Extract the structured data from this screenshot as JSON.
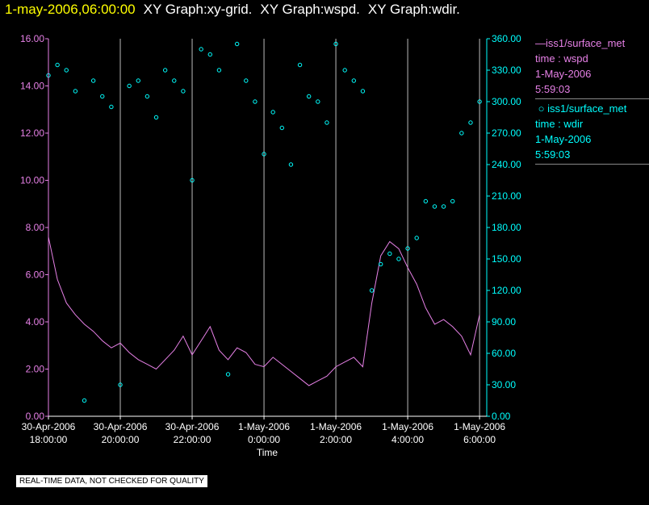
{
  "title": {
    "time": "1-may-2006,06:00:00",
    "parts": [
      "XY Graph:xy-grid.",
      "XY Graph:wspd.",
      "XY Graph:wdir."
    ]
  },
  "legend": {
    "wspd": {
      "name": "iss1/surface_met",
      "var": "time : wspd",
      "date": "1-May-2006",
      "clock": "5:59:03",
      "color": "#e680e6",
      "marker": "line"
    },
    "wdir": {
      "name": "iss1/surface_met",
      "var": "time : wdir",
      "date": "1-May-2006",
      "clock": "5:59:03",
      "color": "#00ffff",
      "marker": "circle"
    }
  },
  "footer_note": "REAL-TIME DATA, NOT CHECKED FOR QUALITY",
  "chart_data": {
    "type": "line",
    "xlabel": "Time",
    "x_range_hours": [
      0,
      12.2
    ],
    "x_ticks": [
      {
        "hour": 0,
        "label1": "30-Apr-2006",
        "label2": "18:00:00"
      },
      {
        "hour": 2,
        "label1": "30-Apr-2006",
        "label2": "20:00:00"
      },
      {
        "hour": 4,
        "label1": "30-Apr-2006",
        "label2": "22:00:00"
      },
      {
        "hour": 6,
        "label1": "1-May-2006",
        "label2": "0:00:00"
      },
      {
        "hour": 8,
        "label1": "1-May-2006",
        "label2": "2:00:00"
      },
      {
        "hour": 10,
        "label1": "1-May-2006",
        "label2": "4:00:00"
      },
      {
        "hour": 12,
        "label1": "1-May-2006",
        "label2": "6:00:00"
      }
    ],
    "left_axis": {
      "ylim": [
        0,
        16
      ],
      "ticks": [
        "0.00",
        "2.00",
        "4.00",
        "6.00",
        "8.00",
        "10.00",
        "12.00",
        "14.00",
        "16.00"
      ],
      "color": "#e680e6"
    },
    "right_axis": {
      "ylim": [
        0,
        360
      ],
      "ticks": [
        "0.00",
        "30.00",
        "60.00",
        "90.00",
        "120.00",
        "150.00",
        "180.00",
        "210.00",
        "240.00",
        "270.00",
        "300.00",
        "330.00",
        "360.00"
      ],
      "color": "#00ffff"
    },
    "series": [
      {
        "name": "wspd",
        "axis": "left",
        "style": "line",
        "color": "#e680e6",
        "x": [
          0.0,
          0.25,
          0.5,
          0.75,
          1.0,
          1.25,
          1.5,
          1.75,
          2.0,
          2.25,
          2.5,
          2.75,
          3.0,
          3.25,
          3.5,
          3.75,
          4.0,
          4.25,
          4.5,
          4.75,
          5.0,
          5.25,
          5.5,
          5.75,
          6.0,
          6.25,
          6.5,
          6.75,
          7.0,
          7.25,
          7.5,
          7.75,
          8.0,
          8.25,
          8.5,
          8.75,
          9.0,
          9.25,
          9.5,
          9.75,
          10.0,
          10.25,
          10.5,
          10.75,
          11.0,
          11.25,
          11.5,
          11.75,
          12.0
        ],
        "values": [
          7.6,
          5.8,
          4.8,
          4.3,
          3.9,
          3.6,
          3.2,
          2.9,
          3.1,
          2.7,
          2.4,
          2.2,
          2.0,
          2.4,
          2.8,
          3.4,
          2.6,
          3.2,
          3.8,
          2.8,
          2.4,
          2.9,
          2.7,
          2.2,
          2.1,
          2.5,
          2.2,
          1.9,
          1.6,
          1.3,
          1.5,
          1.7,
          2.1,
          2.3,
          2.5,
          2.1,
          4.8,
          6.8,
          7.4,
          7.1,
          6.3,
          5.6,
          4.6,
          3.9,
          4.1,
          3.8,
          3.4,
          2.6,
          4.3
        ]
      },
      {
        "name": "wdir",
        "axis": "right",
        "style": "scatter",
        "color": "#00ffff",
        "x": [
          0.0,
          0.25,
          0.5,
          0.75,
          1.0,
          1.25,
          1.5,
          1.75,
          2.0,
          2.25,
          2.5,
          2.75,
          3.0,
          3.25,
          3.5,
          3.75,
          4.0,
          4.25,
          4.5,
          4.75,
          5.0,
          5.25,
          5.5,
          5.75,
          6.0,
          6.25,
          6.5,
          6.75,
          7.0,
          7.25,
          7.5,
          7.75,
          8.0,
          8.25,
          8.5,
          8.75,
          9.0,
          9.25,
          9.5,
          9.75,
          10.0,
          10.25,
          10.5,
          10.75,
          11.0,
          11.25,
          11.5,
          11.75,
          12.0
        ],
        "values": [
          325,
          335,
          330,
          310,
          15,
          320,
          305,
          295,
          30,
          315,
          320,
          305,
          285,
          330,
          320,
          310,
          225,
          350,
          345,
          330,
          40,
          355,
          320,
          300,
          250,
          290,
          275,
          240,
          335,
          305,
          300,
          280,
          355,
          330,
          320,
          310,
          120,
          145,
          155,
          150,
          160,
          170,
          205,
          200,
          200,
          205,
          270,
          280,
          300
        ]
      }
    ]
  }
}
